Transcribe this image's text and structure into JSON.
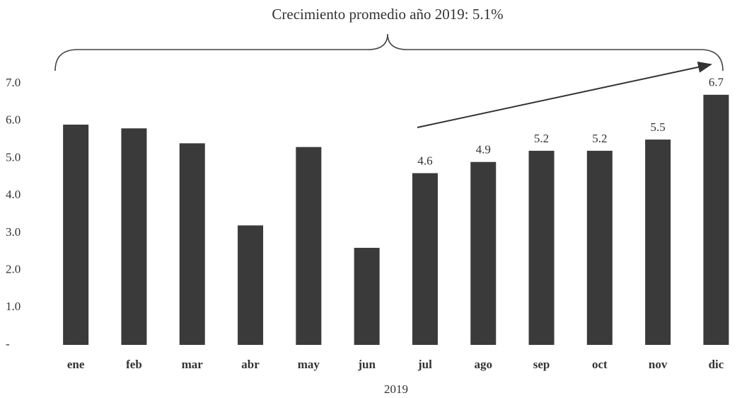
{
  "chart_data": {
    "type": "bar",
    "title": "Crecimiento promedio año 2019: 5.1%",
    "x_label": "2019",
    "categories": [
      "ene",
      "feb",
      "mar",
      "abr",
      "may",
      "jun",
      "jul",
      "ago",
      "sep",
      "oct",
      "nov",
      "dic"
    ],
    "values": [
      5.9,
      5.8,
      5.4,
      3.2,
      5.3,
      2.6,
      4.6,
      4.9,
      5.2,
      5.2,
      5.5,
      6.7
    ],
    "value_labels": [
      null,
      null,
      null,
      null,
      null,
      null,
      "4.6",
      "4.9",
      "5.2",
      "5.2",
      "5.5",
      "6.7"
    ],
    "color": "#3a3a3a",
    "ylim": [
      0,
      7
    ],
    "yticks": [
      {
        "value": 0,
        "label": "-"
      },
      {
        "value": 1,
        "label": "1.0"
      },
      {
        "value": 2,
        "label": "2.0"
      },
      {
        "value": 3,
        "label": "3.0"
      },
      {
        "value": 4,
        "label": "4.0"
      },
      {
        "value": 5,
        "label": "5.0"
      },
      {
        "value": 6,
        "label": "6.0"
      },
      {
        "value": 7,
        "label": "7.0"
      }
    ],
    "grid": false
  }
}
